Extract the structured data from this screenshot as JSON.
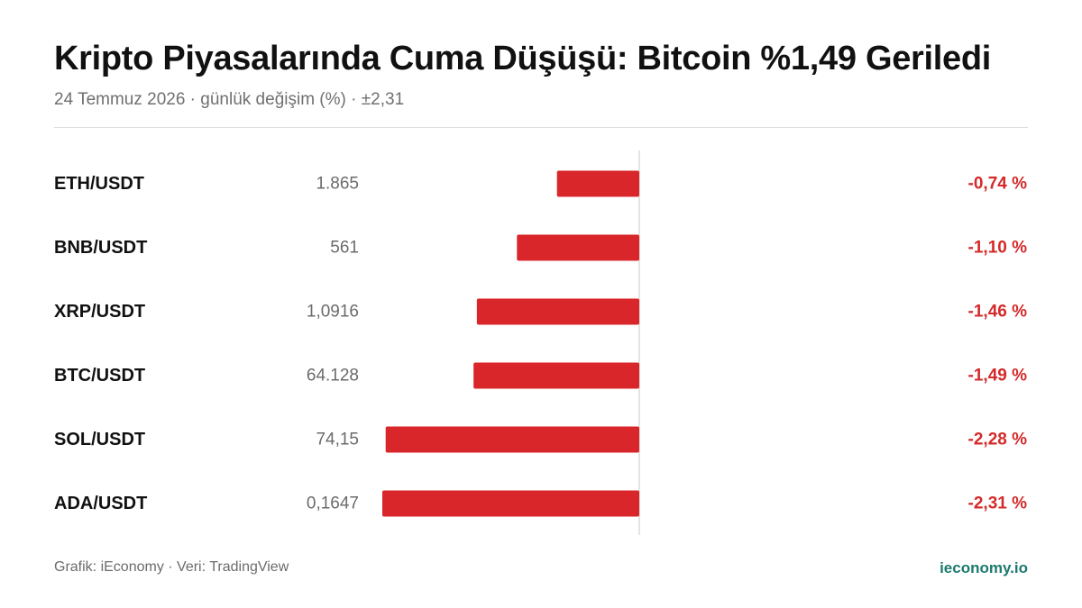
{
  "header": {
    "title": "Kripto Piyasalarında Cuma Düşüşü: Bitcoin %1,49 Geriledi",
    "subtitle": "24 Temmuz 2026 · günlük değişim (%) · ±2,31"
  },
  "footer": {
    "source": "Grafik: iEconomy · Veri: TradingView",
    "brand": "ieconomy.io"
  },
  "colors": {
    "bar": "#d9262a",
    "change_text": "#d42a2a",
    "brand": "#1d7a6e",
    "pair_text": "#111111",
    "price_text": "#6b6b6b",
    "axis": "#dcdcdc"
  },
  "chart_data": {
    "type": "bar",
    "orientation": "horizontal",
    "categories": [
      "ETH/USDT",
      "BNB/USDT",
      "XRP/USDT",
      "BTC/USDT",
      "SOL/USDT",
      "ADA/USDT"
    ],
    "prices": [
      "1.865",
      "561",
      "1,0916",
      "64.128",
      "74,15",
      "0,1647"
    ],
    "values": [
      -0.74,
      -1.1,
      -1.46,
      -1.49,
      -2.28,
      -2.31
    ],
    "value_labels": [
      "-0,74 %",
      "-1,10 %",
      "-1,46 %",
      "-1,49 %",
      "-2,28 %",
      "-2,31 %"
    ],
    "xlim": [
      -2.31,
      2.31
    ],
    "grid": false
  }
}
